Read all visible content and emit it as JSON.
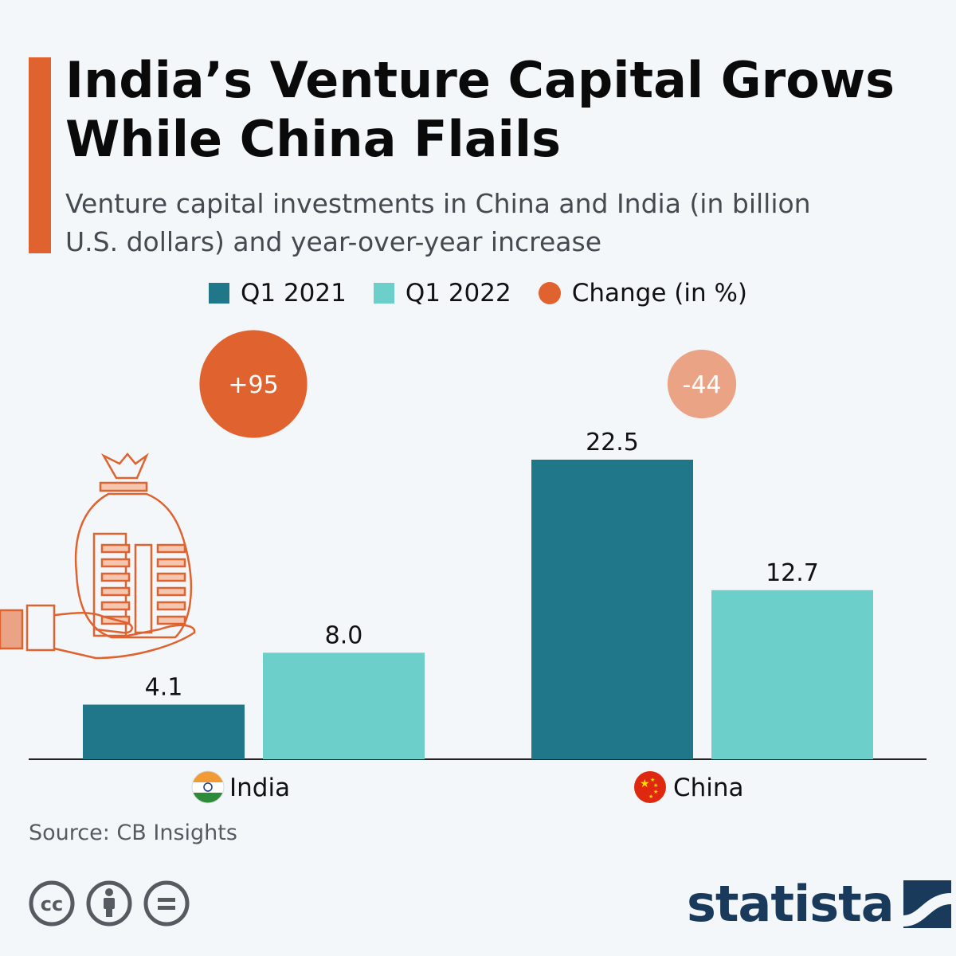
{
  "header": {
    "title": "India’s Venture Capital Grows While China Flails",
    "subtitle": "Venture capital investments in China and India (in billion U.S. dollars) and year-over-year increase"
  },
  "legend": [
    {
      "label": "Q1 2021",
      "color": "#21778a",
      "shape": "square"
    },
    {
      "label": "Q1 2022",
      "color": "#6dcfc9",
      "shape": "square"
    },
    {
      "label": "Change (in %)",
      "color": "#e0622e",
      "shape": "circle"
    }
  ],
  "chart_data": {
    "type": "bar",
    "title": "India’s Venture Capital Grows While China Flails",
    "categories": [
      "India",
      "China"
    ],
    "series": [
      {
        "name": "Q1 2021",
        "values": [
          4.1,
          22.5
        ],
        "color": "#21778a"
      },
      {
        "name": "Q1 2022",
        "values": [
          8.0,
          12.7
        ],
        "color": "#6dcfc9"
      }
    ],
    "value_labels": [
      [
        "4.1",
        "22.5"
      ],
      [
        "8.0",
        "12.7"
      ]
    ],
    "change": [
      {
        "category": "India",
        "label": "+95",
        "value": 95,
        "color": "#e0622e"
      },
      {
        "category": "China",
        "label": "-44",
        "value": -44,
        "color": "#eba385"
      }
    ],
    "ylim": [
      0,
      22.5
    ],
    "xlabel": "",
    "ylabel": "billion U.S. dollars"
  },
  "footer": {
    "source": "Source: CB Insights",
    "brand": "statista",
    "license_icons": [
      "cc-icon",
      "attribution-icon",
      "no-derivatives-icon"
    ]
  }
}
